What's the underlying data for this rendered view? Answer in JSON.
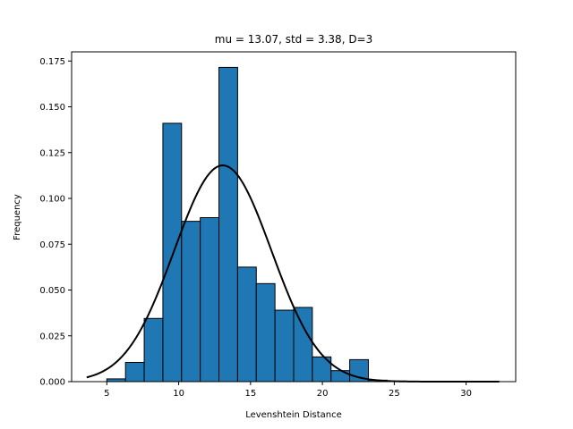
{
  "chart_data": {
    "type": "bar",
    "title": "mu = 13.07,  std = 3.38,  D=3",
    "xlabel": "Levenshtein Distance",
    "ylabel": "Frequency",
    "xlim": [
      2.55,
      33.45
    ],
    "ylim": [
      0,
      0.18
    ],
    "xticks": [
      5,
      10,
      15,
      20,
      25,
      30
    ],
    "yticks": [
      0.0,
      0.025,
      0.05,
      0.075,
      0.1,
      0.125,
      0.15,
      0.175
    ],
    "ytick_labels": [
      "0.000",
      "0.025",
      "0.050",
      "0.075",
      "0.100",
      "0.125",
      "0.150",
      "0.175"
    ],
    "grid": false,
    "bar_color": "#1f77b4",
    "edge_color": "#000000",
    "bins": [
      {
        "x0": 5.0,
        "x1": 6.3,
        "value": 0.0015
      },
      {
        "x0": 6.3,
        "x1": 7.6,
        "value": 0.0105
      },
      {
        "x0": 7.6,
        "x1": 8.9,
        "value": 0.0345
      },
      {
        "x0": 8.9,
        "x1": 10.2,
        "value": 0.141
      },
      {
        "x0": 10.2,
        "x1": 11.5,
        "value": 0.0875
      },
      {
        "x0": 11.5,
        "x1": 12.8,
        "value": 0.0895
      },
      {
        "x0": 12.8,
        "x1": 14.1,
        "value": 0.1715
      },
      {
        "x0": 14.1,
        "x1": 15.4,
        "value": 0.0625
      },
      {
        "x0": 15.4,
        "x1": 16.7,
        "value": 0.0535
      },
      {
        "x0": 16.7,
        "x1": 18.0,
        "value": 0.039
      },
      {
        "x0": 18.0,
        "x1": 19.3,
        "value": 0.0405
      },
      {
        "x0": 19.3,
        "x1": 20.6,
        "value": 0.0135
      },
      {
        "x0": 20.6,
        "x1": 21.9,
        "value": 0.006
      },
      {
        "x0": 21.9,
        "x1": 23.2,
        "value": 0.012
      },
      {
        "x0": 23.2,
        "x1": 24.5,
        "value": 0.0008
      },
      {
        "x0": 24.5,
        "x1": 25.8,
        "value": 0.0003
      },
      {
        "x0": 25.8,
        "x1": 27.1,
        "value": 0.0002
      },
      {
        "x0": 27.1,
        "x1": 28.4,
        "value": 0.0001
      },
      {
        "x0": 28.4,
        "x1": 29.7,
        "value": 0.0001
      },
      {
        "x0": 29.7,
        "x1": 31.0,
        "value": 0.0001
      },
      {
        "x0": 31.0,
        "x1": 32.3,
        "value": 0.0001
      }
    ],
    "curve": {
      "type": "normal-pdf",
      "mu": 13.07,
      "std": 3.38,
      "x_range": [
        3.6,
        32.3
      ],
      "color": "#000000"
    }
  }
}
